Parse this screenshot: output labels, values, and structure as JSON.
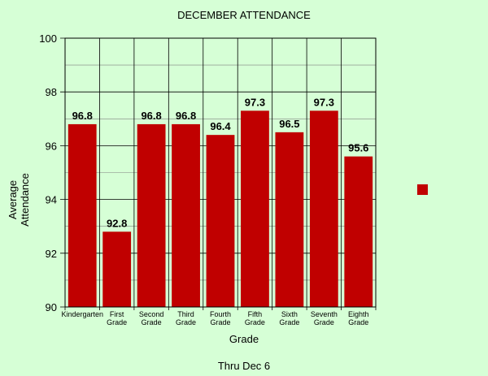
{
  "chart_data": {
    "type": "bar",
    "title": "DECEMBER ATTENDANCE",
    "subtitle": "Thru Dec 6",
    "xlabel": "Grade",
    "ylabel": "Average Attendance",
    "categories": [
      [
        "Kindergarten"
      ],
      [
        "First",
        "Grade"
      ],
      [
        "Second",
        "Grade"
      ],
      [
        "Third",
        "Grade"
      ],
      [
        "Fourth",
        "Grade"
      ],
      [
        "Fifth",
        "Grade"
      ],
      [
        "Sixth",
        "Grade"
      ],
      [
        "Seventh",
        "Grade"
      ],
      [
        "Eighth",
        "Grade"
      ]
    ],
    "values": [
      96.8,
      92.8,
      96.8,
      96.8,
      96.4,
      97.3,
      96.5,
      97.3,
      95.6
    ],
    "value_labels": [
      "96.8",
      "92.8",
      "96.8",
      "96.8",
      "96.4",
      "97.3",
      "96.5",
      "97.3",
      "95.6"
    ],
    "ylim": [
      90,
      100
    ],
    "yticks": [
      90,
      92,
      94,
      96,
      98,
      100
    ],
    "grid": true,
    "legend": "right, single swatch without text",
    "colors": {
      "bar": "#c00000",
      "background": "#d6ffd6",
      "plot_background": "#d6ffd6",
      "gridline": "#000000",
      "minor_gridline": "#808080"
    }
  }
}
